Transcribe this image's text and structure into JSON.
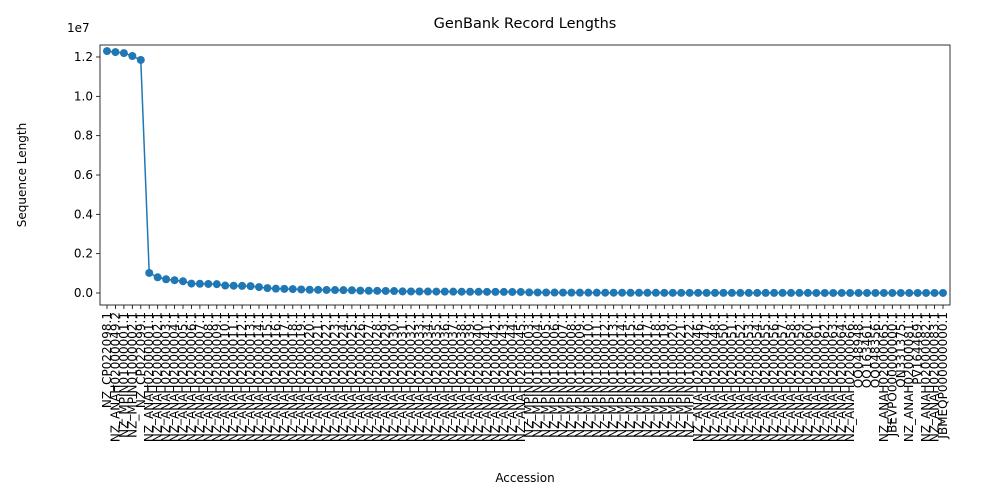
{
  "chart_data": {
    "type": "line",
    "title": "GenBank Record Lengths",
    "x_label": "Accession",
    "y_label": "Sequence Length",
    "y_offset_label": "1e7",
    "categories": [
      "NZ_CP022098.1",
      "NZ_ANAH02000049.2",
      "NZ_MPIN01000001.1",
      "NZ_MPIN01000002.1",
      "NZ_CP022099.1",
      "NZ_ANAH02000001.1",
      "NZ_ANAH02000002.1",
      "NZ_ANAH02000003.1",
      "NZ_ANAH02000004.1",
      "NZ_ANAH02000005.1",
      "NZ_ANAH02000006.1",
      "NZ_ANAH02000007.1",
      "NZ_ANAH02000008.1",
      "NZ_ANAH02000009.1",
      "NZ_ANAH02000010.1",
      "NZ_ANAH02000011.1",
      "NZ_ANAH02000012.1",
      "NZ_ANAH02000013.1",
      "NZ_ANAH02000014.1",
      "NZ_ANAH02000015.1",
      "NZ_ANAH02000016.1",
      "NZ_ANAH02000017.1",
      "NZ_ANAH02000018.1",
      "NZ_ANAH02000019.1",
      "NZ_ANAH02000020.1",
      "NZ_ANAH02000021.1",
      "NZ_ANAH02000022.1",
      "NZ_ANAH02000023.1",
      "NZ_ANAH02000024.1",
      "NZ_ANAH02000025.1",
      "NZ_ANAH02000026.1",
      "NZ_ANAH02000027.1",
      "NZ_ANAH02000028.1",
      "NZ_ANAH02000029.1",
      "NZ_ANAH02000030.1",
      "NZ_ANAH02000031.1",
      "NZ_ANAH02000032.1",
      "NZ_ANAH02000033.1",
      "NZ_ANAH02000034.1",
      "NZ_ANAH02000035.1",
      "NZ_ANAH02000036.1",
      "NZ_ANAH02000037.1",
      "NZ_ANAH02000038.1",
      "NZ_ANAH02000039.1",
      "NZ_ANAH02000040.1",
      "NZ_ANAH02000041.1",
      "NZ_ANAH02000042.1",
      "NZ_ANAH02000043.1",
      "NZ_ANAH02000044.1",
      "NZ_ANAH02000045.1",
      "NZ_MPIN01000003.1",
      "NZ_MPIN01000004.1",
      "NZ_MPIN01000005.1",
      "NZ_MPIN01000006.1",
      "NZ_MPIN01000007.1",
      "NZ_MPIN01000008.1",
      "NZ_MPIN01000009.1",
      "NZ_MPIN01000010.1",
      "NZ_MPIN01000011.1",
      "NZ_MPIN01000012.1",
      "NZ_MPIN01000013.1",
      "NZ_MPIN01000014.1",
      "NZ_MPIN01000015.1",
      "NZ_MPIN01000016.1",
      "NZ_MPIN01000017.1",
      "NZ_MPIN01000018.1",
      "NZ_MPIN01000019.1",
      "NZ_MPIN01000020.1",
      "NZ_MPIN01000021.1",
      "NZ_MPIN01000022.1",
      "NZ_ANAH02000046.1",
      "NZ_ANAH02000047.1",
      "NZ_ANAH02000048.1",
      "NZ_ANAH02000050.1",
      "NZ_ANAH02000051.1",
      "NZ_ANAH02000052.1",
      "NZ_ANAH02000053.1",
      "NZ_ANAH02000054.1",
      "NZ_ANAH02000055.1",
      "NZ_ANAH02000056.1",
      "NZ_ANAH02000057.1",
      "NZ_ANAH02000058.1",
      "NZ_ANAH02000059.1",
      "NZ_ANAH02000060.1",
      "NZ_ANAH02000061.1",
      "NZ_ANAH02000062.1",
      "NZ_ANAH02000063.1",
      "NZ_ANAH02000064.1",
      "NZ_ANAH02000066.1",
      "OQ048948.1",
      "OQ163461.1",
      "OQ048356.1",
      "NZ_ANAH02000065.1",
      "JBEVPO000000000.1",
      "ON331375.1",
      "NZ_ANAH02000081.1",
      "PV164469.1",
      "NZ_ANAH02000082.1",
      "NZ_ANAH02000083.1",
      "JBMEQP000000000.1"
    ],
    "series": [
      {
        "name": "Sequence Length",
        "color": "#1f77b4",
        "values": [
          12300000,
          12250000,
          12200000,
          12050000,
          11850000,
          1020000,
          800000,
          700000,
          650000,
          600000,
          480000,
          470000,
          460000,
          450000,
          380000,
          370000,
          360000,
          350000,
          300000,
          250000,
          220000,
          210000,
          200000,
          180000,
          165000,
          160000,
          155000,
          150000,
          145000,
          140000,
          120000,
          115000,
          110000,
          105000,
          100000,
          80000,
          78000,
          76000,
          74000,
          72000,
          70000,
          68000,
          66000,
          64000,
          62000,
          60000,
          58000,
          56000,
          54000,
          52000,
          30000,
          28000,
          26000,
          24000,
          22000,
          20000,
          19000,
          18000,
          17000,
          16000,
          15000,
          14000,
          13000,
          12000,
          11000,
          10000,
          9500,
          9000,
          8500,
          8000,
          7500,
          7000,
          6500,
          6000,
          5500,
          5000,
          4800,
          4600,
          4400,
          4200,
          4000,
          3800,
          3600,
          3400,
          3200,
          3000,
          2800,
          2600,
          2400,
          2200,
          2000,
          1900,
          1800,
          1700,
          1600,
          1500,
          1400,
          1300,
          1200,
          1100
        ]
      }
    ],
    "ylim": [
      -610000,
      12610000
    ],
    "yticks": [
      {
        "value": 0,
        "label": "0.0"
      },
      {
        "value": 2000000,
        "label": "0.2"
      },
      {
        "value": 4000000,
        "label": "0.4"
      },
      {
        "value": 6000000,
        "label": "0.6"
      },
      {
        "value": 8000000,
        "label": "0.8"
      },
      {
        "value": 10000000,
        "label": "1.0"
      },
      {
        "value": 12000000,
        "label": "1.2"
      }
    ],
    "grid": false
  }
}
